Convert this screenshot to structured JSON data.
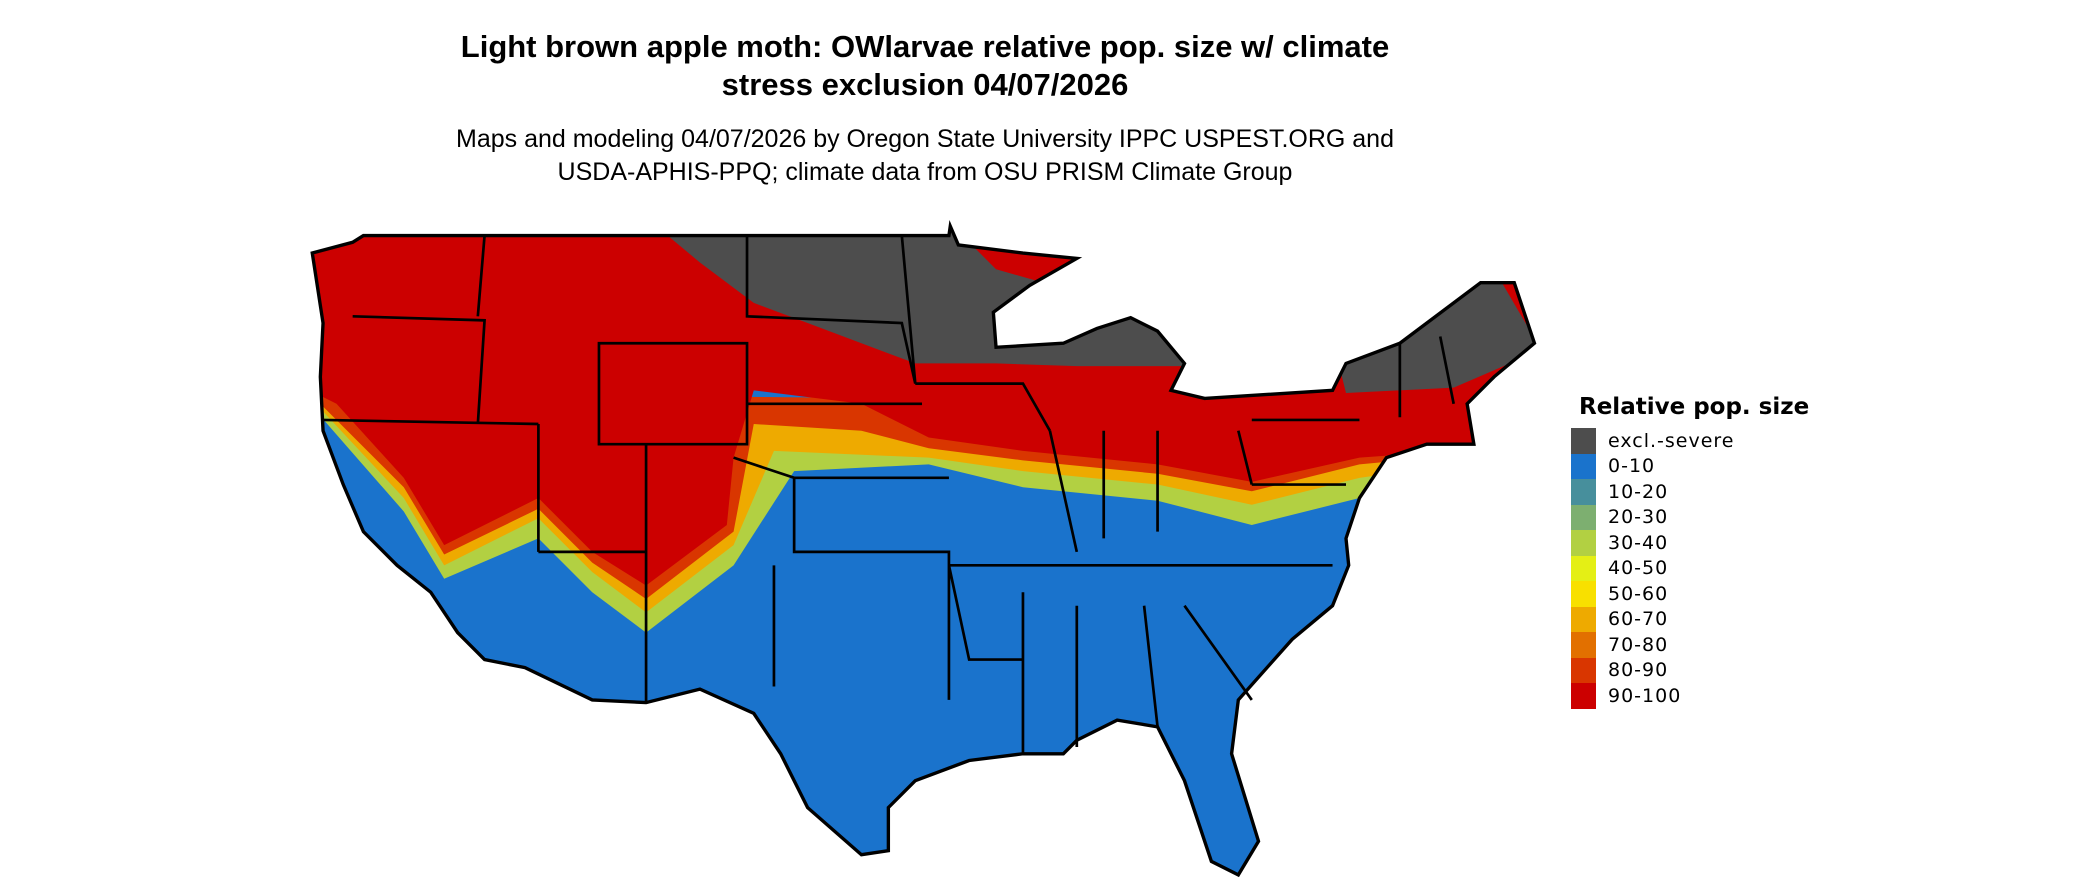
{
  "title_line1": "Light brown apple moth: OWlarvae relative pop. size w/ climate",
  "title_line2": "stress exclusion 04/07/2026",
  "subtitle_line1": "Maps and modeling 04/07/2026 by Oregon State University IPPC USPEST.ORG and",
  "subtitle_line2": "USDA-APHIS-PPQ; climate data from OSU PRISM Climate Group",
  "legend": {
    "title": "Relative pop. size",
    "items": [
      {
        "label": "excl.-severe",
        "color": "#4d4d4d"
      },
      {
        "label": "0-10",
        "color": "#1a73cc"
      },
      {
        "label": "10-20",
        "color": "#478f9c"
      },
      {
        "label": "20-30",
        "color": "#7daf70"
      },
      {
        "label": "30-40",
        "color": "#b2d042"
      },
      {
        "label": "40-50",
        "color": "#e4ef15"
      },
      {
        "label": "50-60",
        "color": "#f8e000"
      },
      {
        "label": "60-70",
        "color": "#eeaa00"
      },
      {
        "label": "70-80",
        "color": "#e27000"
      },
      {
        "label": "80-90",
        "color": "#d93600"
      },
      {
        "label": "90-100",
        "color": "#cc0000"
      }
    ]
  }
}
